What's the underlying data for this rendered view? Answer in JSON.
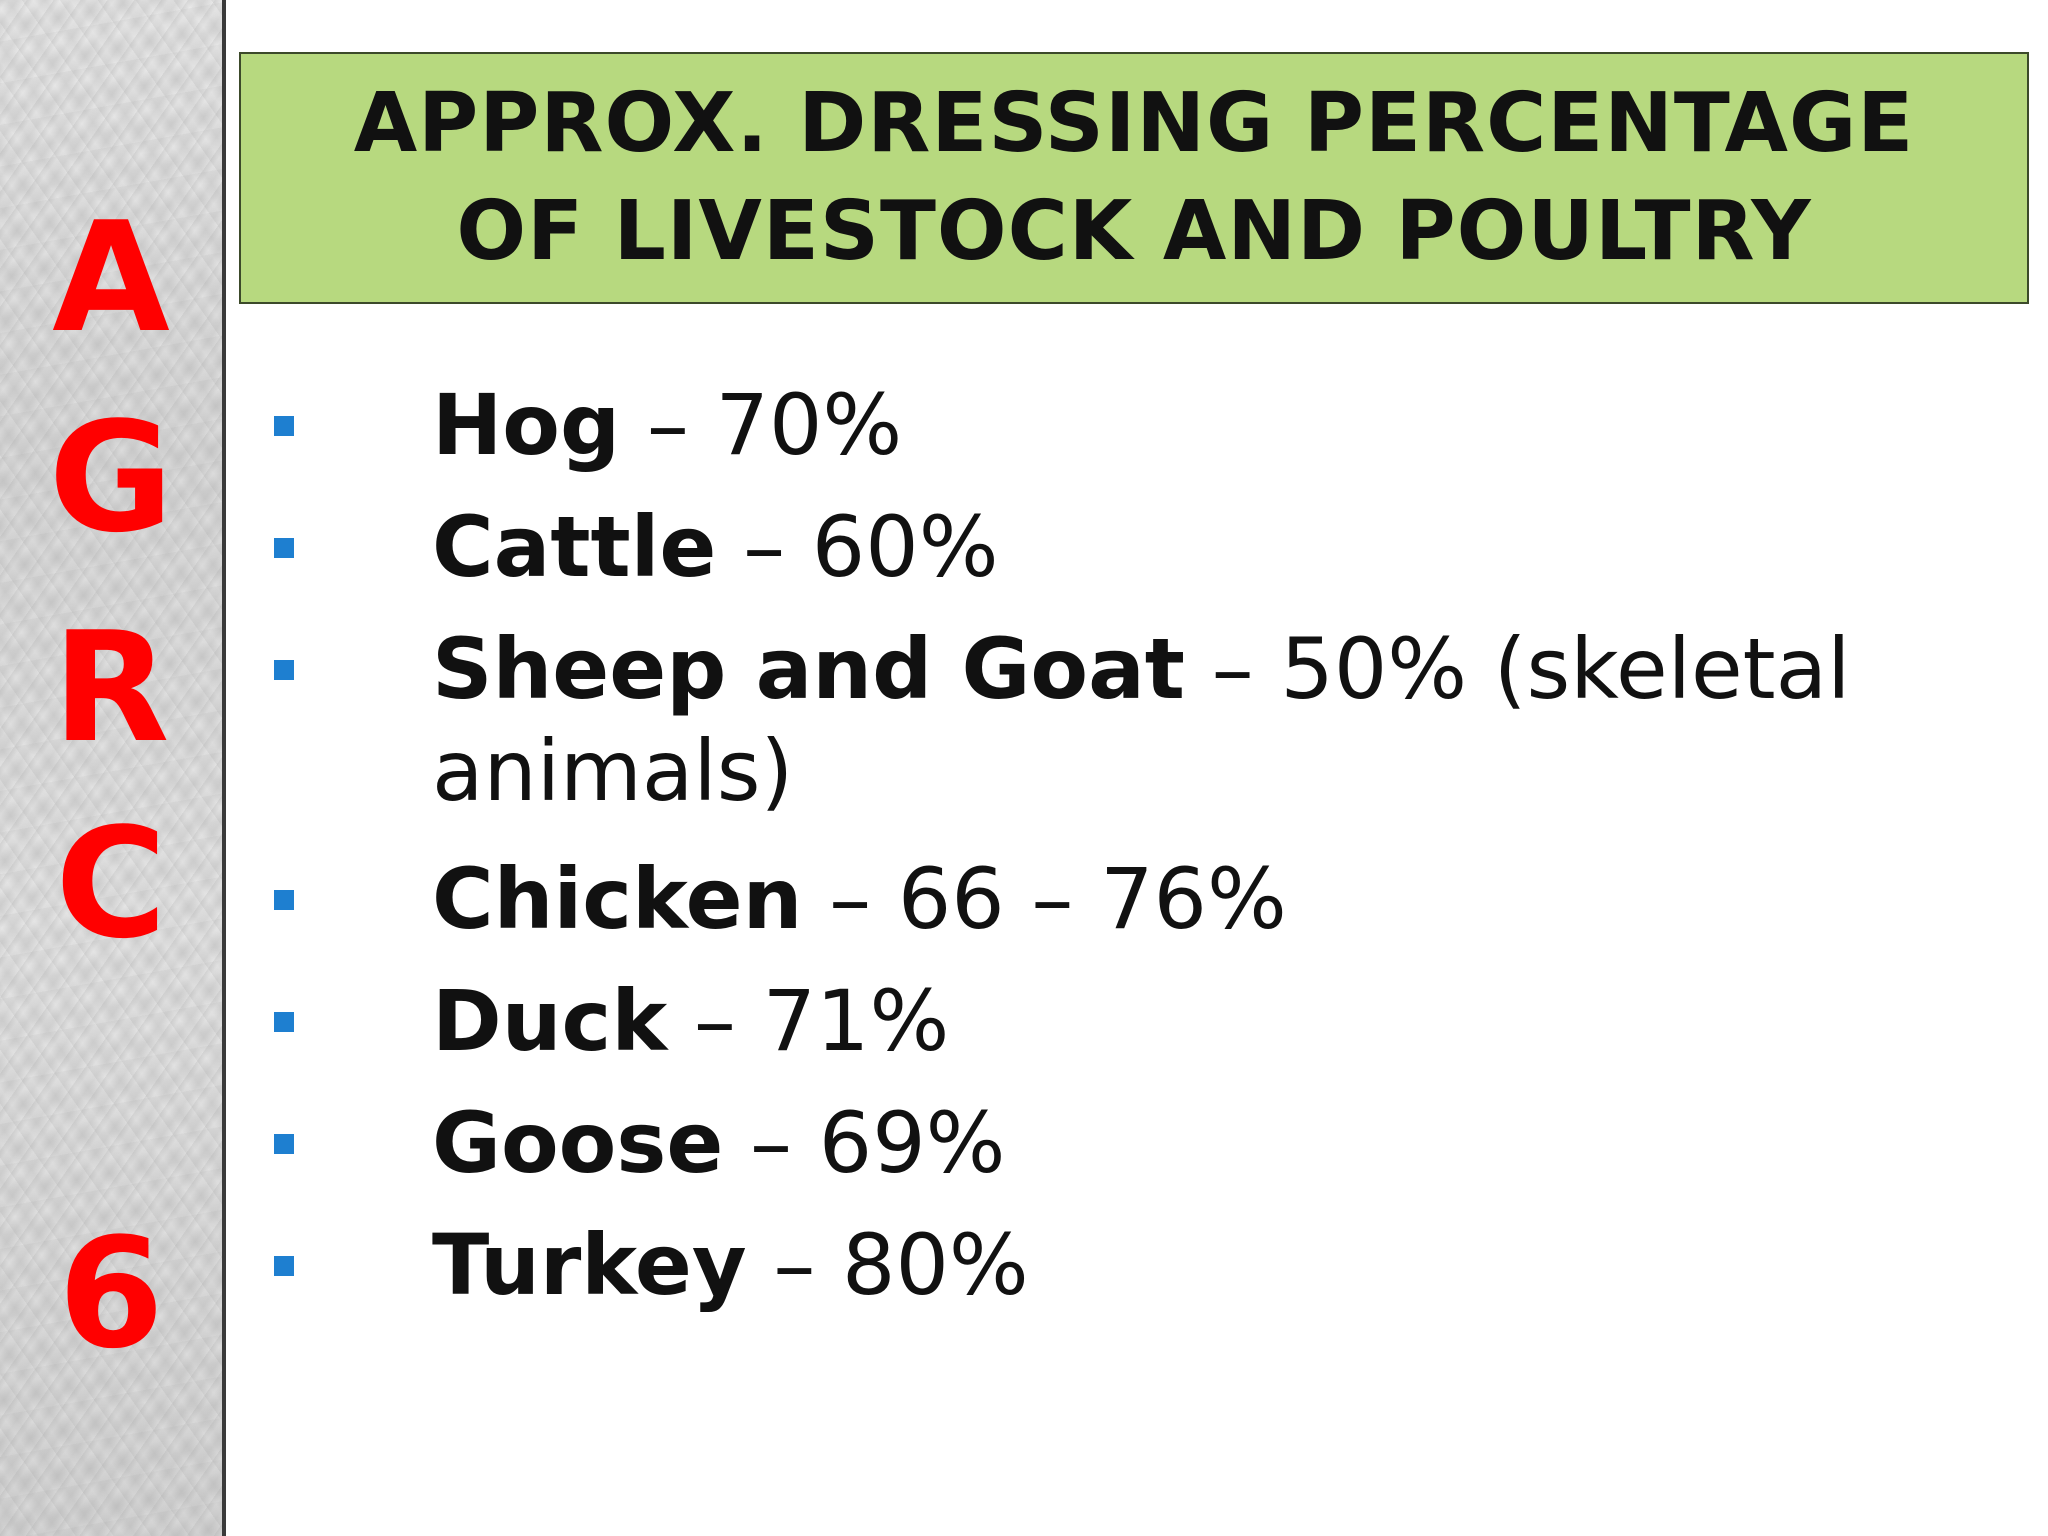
{
  "sidebar": {
    "letters": [
      "A",
      "G",
      "R",
      "C",
      "6"
    ],
    "letter_color": "#ff0000"
  },
  "title": {
    "line1": "APPROX. DRESSING PERCENTAGE",
    "line2": "OF LIVESTOCK AND POULTRY",
    "background": "#b7d97f"
  },
  "bullets": [
    {
      "name": "Hog",
      "value": " – 70%"
    },
    {
      "name": "Cattle",
      "value": " – 60%"
    },
    {
      "name": "Sheep and Goat",
      "value": " – 50% (skeletal",
      "continuation": "animals)"
    },
    {
      "name": "Chicken",
      "value": " – 66 – 76%"
    },
    {
      "name": "Duck",
      "value": " – 71%"
    },
    {
      "name": "Goose",
      "value": " – 69%"
    },
    {
      "name": "Turkey",
      "value": " – 80%"
    }
  ],
  "bullet_color": "#1e7fd0"
}
